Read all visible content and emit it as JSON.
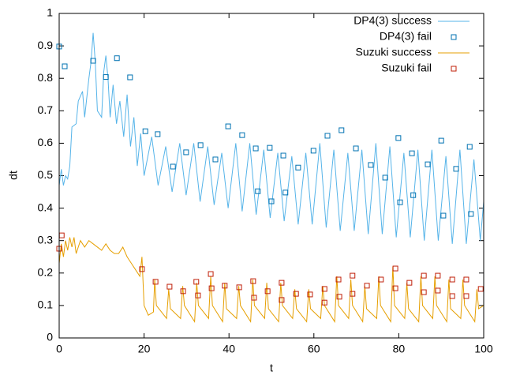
{
  "chart_data": {
    "type": "line",
    "xlabel": "t",
    "ylabel": "dt",
    "xlim": [
      0,
      100
    ],
    "xticks": [
      0,
      20,
      40,
      60,
      80,
      100
    ],
    "ylim": [
      0,
      1
    ],
    "yticks": [
      0,
      0.1,
      0.2,
      0.3,
      0.4,
      0.5,
      0.6,
      0.7,
      0.8,
      0.9,
      1
    ],
    "legend": "top-right",
    "series": [
      {
        "name": "DP4(3) success",
        "color": "#56b4e9",
        "style": "line",
        "x": [
          0,
          0.5,
          1,
          1.5,
          2,
          2.5,
          3,
          4,
          4.5,
          5.5,
          6,
          7,
          7.5,
          8,
          8.5,
          9,
          10,
          10.5,
          11,
          11.5,
          12,
          12.7,
          13.5,
          14.3,
          15.2,
          16,
          16.8,
          17.6,
          18.4,
          19.2,
          20,
          21.8,
          23.3,
          25.1,
          26.6,
          28.4,
          29.9,
          31.7,
          33.2,
          35,
          36.5,
          38.3,
          39.8,
          41.6,
          43.1,
          44.9,
          46.4,
          48.2,
          49.7,
          51.5,
          53,
          54.8,
          56.3,
          58.1,
          59.6,
          61.4,
          62.9,
          64.7,
          66.2,
          68,
          69.5,
          71.3,
          72.8,
          74.6,
          76.1,
          77.9,
          79.4,
          81.2,
          82.7,
          84.5,
          86,
          87.8,
          89.3,
          91.1,
          92.6,
          94.4,
          95.9,
          97.7,
          99.2,
          100
        ],
        "values": [
          0.47,
          0.52,
          0.47,
          0.5,
          0.49,
          0.53,
          0.65,
          0.66,
          0.73,
          0.76,
          0.68,
          0.8,
          0.85,
          0.94,
          0.85,
          0.7,
          0.68,
          0.82,
          0.87,
          0.8,
          0.68,
          0.78,
          0.66,
          0.73,
          0.62,
          0.75,
          0.59,
          0.68,
          0.53,
          0.63,
          0.5,
          0.62,
          0.47,
          0.59,
          0.45,
          0.6,
          0.44,
          0.6,
          0.42,
          0.59,
          0.41,
          0.57,
          0.4,
          0.6,
          0.39,
          0.6,
          0.38,
          0.58,
          0.37,
          0.57,
          0.36,
          0.56,
          0.35,
          0.57,
          0.35,
          0.6,
          0.34,
          0.58,
          0.33,
          0.57,
          0.33,
          0.58,
          0.32,
          0.6,
          0.32,
          0.59,
          0.31,
          0.57,
          0.31,
          0.58,
          0.3,
          0.58,
          0.3,
          0.56,
          0.29,
          0.58,
          0.29,
          0.55,
          0.3,
          0.42
        ]
      },
      {
        "name": "DP4(3) fail",
        "color": "#0072b2",
        "style": "points",
        "x": [
          0,
          1.3,
          8,
          11,
          13.6,
          16.7,
          20.3,
          23.2,
          26.8,
          29.9,
          33.3,
          36.8,
          39.8,
          43.1,
          46.3,
          49.6,
          52.8,
          56.3,
          59.9,
          63.2,
          66.5,
          69.9,
          73.4,
          76.8,
          79.9,
          83.1,
          86.8,
          90,
          93.5,
          96.7,
          46.8,
          50,
          53.3,
          80.3,
          83.4,
          90.5,
          97
        ],
        "values": [
          0.898,
          0.837,
          0.854,
          0.804,
          0.862,
          0.803,
          0.637,
          0.628,
          0.528,
          0.572,
          0.594,
          0.55,
          0.652,
          0.625,
          0.584,
          0.586,
          0.562,
          0.525,
          0.577,
          0.623,
          0.64,
          0.584,
          0.533,
          0.494,
          0.616,
          0.569,
          0.535,
          0.608,
          0.521,
          0.589,
          0.452,
          0.421,
          0.448,
          0.418,
          0.44,
          0.377,
          0.382
        ]
      },
      {
        "name": "Suzuki success",
        "color": "#e69f00",
        "style": "line",
        "x": [
          0,
          0.5,
          1,
          1.5,
          2,
          2.5,
          3,
          3.5,
          4,
          5,
          6,
          7,
          8,
          9,
          10,
          11,
          12,
          13,
          14,
          15,
          16,
          17,
          18,
          19,
          19.5,
          20,
          21,
          22.2,
          22.5,
          22.9,
          25.3,
          25.8,
          26.2,
          28.6,
          29.1,
          29.5,
          31.9,
          32.4,
          32.8,
          35.2,
          35.7,
          36.1,
          38.5,
          39,
          39.4,
          41.8,
          42.3,
          42.7,
          45.1,
          45.6,
          46,
          48.4,
          48.9,
          49.3,
          51.7,
          52.2,
          52.6,
          55,
          55.5,
          55.9,
          58.3,
          58.8,
          59.2,
          61.6,
          62.1,
          62.5,
          64.9,
          65.4,
          65.8,
          68.2,
          68.7,
          69.1,
          71.5,
          72,
          72.4,
          74.8,
          75.3,
          75.7,
          78.1,
          78.6,
          79,
          81.4,
          81.9,
          82.3,
          84.7,
          85.2,
          85.6,
          88,
          88.5,
          88.9,
          91.3,
          91.8,
          92.2,
          94.6,
          95.1,
          95.5,
          97.9,
          98.4,
          98.8,
          100
        ],
        "values": [
          0.23,
          0.29,
          0.25,
          0.3,
          0.27,
          0.31,
          0.28,
          0.31,
          0.26,
          0.3,
          0.28,
          0.3,
          0.29,
          0.28,
          0.27,
          0.29,
          0.27,
          0.26,
          0.26,
          0.28,
          0.25,
          0.23,
          0.21,
          0.19,
          0.25,
          0.1,
          0.07,
          0.08,
          0.18,
          0.1,
          0.06,
          0.15,
          0.09,
          0.06,
          0.16,
          0.1,
          0.05,
          0.17,
          0.1,
          0.06,
          0.19,
          0.1,
          0.05,
          0.17,
          0.09,
          0.06,
          0.16,
          0.1,
          0.05,
          0.18,
          0.1,
          0.06,
          0.17,
          0.09,
          0.05,
          0.17,
          0.1,
          0.06,
          0.15,
          0.09,
          0.05,
          0.15,
          0.09,
          0.06,
          0.16,
          0.1,
          0.05,
          0.19,
          0.1,
          0.06,
          0.18,
          0.1,
          0.05,
          0.16,
          0.09,
          0.06,
          0.19,
          0.1,
          0.05,
          0.22,
          0.1,
          0.06,
          0.17,
          0.09,
          0.05,
          0.19,
          0.1,
          0.06,
          0.19,
          0.1,
          0.05,
          0.18,
          0.09,
          0.06,
          0.18,
          0.1,
          0.05,
          0.15,
          0.09,
          0.1
        ]
      },
      {
        "name": "Suzuki fail",
        "color": "#c0200a",
        "style": "points",
        "x": [
          0,
          0.6,
          19.5,
          22.7,
          26,
          29.2,
          32.3,
          32.7,
          35.7,
          35.9,
          39,
          42.4,
          45.7,
          45.9,
          49.1,
          52.4,
          52.4,
          55.8,
          59.1,
          62.5,
          62.5,
          65.8,
          66,
          69.1,
          69.1,
          72.5,
          75.8,
          79.2,
          79.2,
          82.5,
          85.9,
          85.9,
          89.2,
          89.2,
          92.6,
          92.6,
          95.9,
          95.9,
          99.3
        ],
        "values": [
          0.275,
          0.316,
          0.212,
          0.173,
          0.158,
          0.144,
          0.173,
          0.131,
          0.197,
          0.153,
          0.161,
          0.156,
          0.175,
          0.124,
          0.144,
          0.17,
          0.117,
          0.136,
          0.134,
          0.109,
          0.151,
          0.18,
          0.127,
          0.192,
          0.136,
          0.161,
          0.18,
          0.214,
          0.153,
          0.17,
          0.192,
          0.141,
          0.192,
          0.146,
          0.18,
          0.129,
          0.18,
          0.129,
          0.151
        ]
      }
    ]
  }
}
